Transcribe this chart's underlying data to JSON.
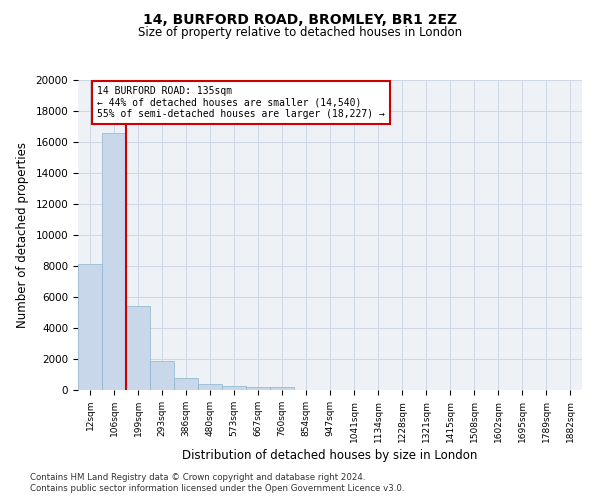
{
  "title1": "14, BURFORD ROAD, BROMLEY, BR1 2EZ",
  "title2": "Size of property relative to detached houses in London",
  "xlabel": "Distribution of detached houses by size in London",
  "ylabel": "Number of detached properties",
  "bar_color": "#c8d8ea",
  "bar_edge_color": "#8ab4cc",
  "background_color": "#eef2f7",
  "categories": [
    "12sqm",
    "106sqm",
    "199sqm",
    "293sqm",
    "386sqm",
    "480sqm",
    "573sqm",
    "667sqm",
    "760sqm",
    "854sqm",
    "947sqm",
    "1041sqm",
    "1134sqm",
    "1228sqm",
    "1321sqm",
    "1415sqm",
    "1508sqm",
    "1602sqm",
    "1695sqm",
    "1789sqm",
    "1882sqm"
  ],
  "values": [
    8100,
    16600,
    5400,
    1850,
    800,
    370,
    280,
    220,
    200,
    0,
    0,
    0,
    0,
    0,
    0,
    0,
    0,
    0,
    0,
    0,
    0
  ],
  "red_line_x": 1.5,
  "annotation_text": "14 BURFORD ROAD: 135sqm\n← 44% of detached houses are smaller (14,540)\n55% of semi-detached houses are larger (18,227) →",
  "ylim": [
    0,
    20000
  ],
  "yticks": [
    0,
    2000,
    4000,
    6000,
    8000,
    10000,
    12000,
    14000,
    16000,
    18000,
    20000
  ],
  "footer1": "Contains HM Land Registry data © Crown copyright and database right 2024.",
  "footer2": "Contains public sector information licensed under the Open Government Licence v3.0.",
  "red_line_color": "#cc0000",
  "annotation_box_color": "#ffffff",
  "annotation_box_edge": "#cc0000",
  "grid_color": "#cdd8e4"
}
